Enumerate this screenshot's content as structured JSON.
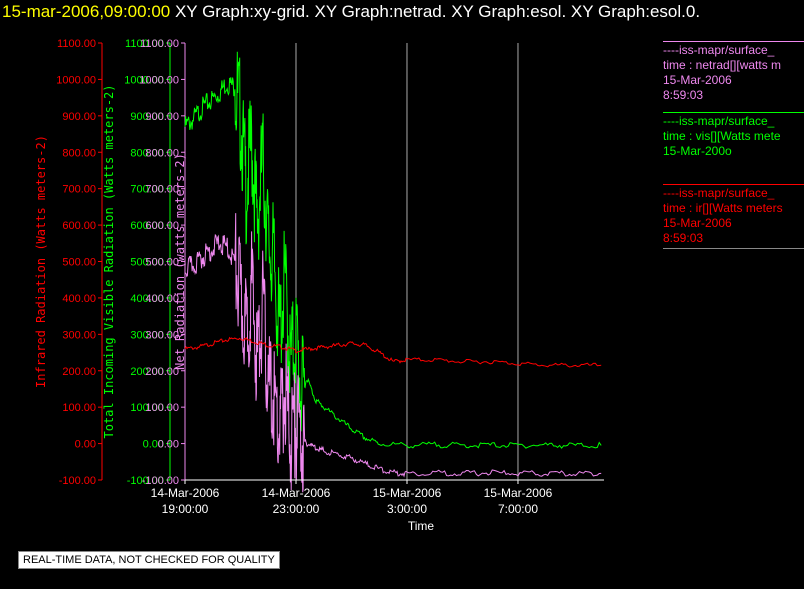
{
  "header": {
    "timestamp": "15-mar-2006,09:00:00",
    "graphs": "XY Graph:xy-grid.  XY Graph:netrad.  XY Graph:esol.  XY Graph:esol.0."
  },
  "colors": {
    "ir": "#ff0000",
    "vis": "#00ff00",
    "net": "#ee88ee",
    "axis_white": "#ffffff"
  },
  "chart_data": {
    "type": "line",
    "xlabel": "Time",
    "x_ticks": [
      {
        "date": "14-Mar-2006",
        "time": "19:00:00",
        "hour": 19
      },
      {
        "date": "14-Mar-2006",
        "time": "23:00:00",
        "hour": 23
      },
      {
        "date": "15-Mar-2006",
        "time": "3:00:00",
        "hour": 27
      },
      {
        "date": "15-Mar-2006",
        "time": "7:00:00",
        "hour": 31
      }
    ],
    "xlim_hours_since_14mar_00": [
      19,
      34.1
    ],
    "grid": "vertical",
    "y_axes": [
      {
        "label": "Infrared Radiation (Watts meters-2)",
        "color": "#ff0000",
        "range": [
          -100,
          1100
        ],
        "ticks": [
          "1100.00",
          "1000.00",
          "900.00",
          "800.00",
          "700.00",
          "600.00",
          "500.00",
          "400.00",
          "300.00",
          "200.00",
          "100.00",
          "0.00",
          "-100.00"
        ]
      },
      {
        "label": "Total Incoming Visible Radiation (Watts meters-2)",
        "color": "#00ff00",
        "range": [
          -100,
          1100
        ],
        "ticks": [
          "1100.00",
          "1000.00",
          "900.00",
          "800.00",
          "700.00",
          "600.00",
          "500.00",
          "400.00",
          "300.00",
          "200.00",
          "100.00",
          "0.00",
          "-100.00"
        ]
      },
      {
        "label": "Net Radiation (watts meters-2)",
        "color": "#ee88ee",
        "range": [
          -100,
          1100
        ],
        "ticks": [
          "1100.00",
          "1000.00",
          "900.00",
          "800.00",
          "700.00",
          "600.00",
          "500.00",
          "400.00",
          "300.00",
          "200.00",
          "100.00",
          "0.00",
          "-100.00"
        ]
      }
    ],
    "series": [
      {
        "key": "vis",
        "color": "#00ff00",
        "x": [
          19.0,
          19.3,
          19.6,
          19.9,
          20.2,
          20.5,
          20.8,
          21.0,
          21.2,
          21.4,
          21.6,
          21.8,
          22.0,
          22.2,
          22.4,
          22.6,
          22.8,
          23.0,
          23.2,
          23.4,
          23.7,
          24.0,
          24.5,
          25.0,
          25.5,
          26.0,
          27.0,
          28.0,
          29.0,
          30.0,
          31.0,
          32.0,
          33.0,
          34.0
        ],
        "y": [
          870,
          890,
          920,
          940,
          960,
          990,
          980,
          900,
          700,
          820,
          600,
          780,
          550,
          500,
          300,
          450,
          220,
          300,
          130,
          180,
          120,
          100,
          70,
          40,
          15,
          0,
          -5,
          -3,
          -5,
          -4,
          -5,
          -4,
          -5,
          -5
        ]
      },
      {
        "key": "net",
        "color": "#ee88ee",
        "x": [
          19.0,
          19.3,
          19.6,
          19.9,
          20.2,
          20.5,
          20.8,
          21.0,
          21.2,
          21.4,
          21.6,
          21.8,
          22.0,
          22.2,
          22.4,
          22.6,
          22.8,
          23.0,
          23.2,
          23.4,
          23.7,
          24.0,
          24.5,
          25.0,
          25.5,
          26.0,
          26.5,
          27.0,
          28.0,
          29.0,
          30.0,
          31.0,
          32.0,
          33.0,
          34.0
        ],
        "y": [
          480,
          490,
          510,
          530,
          550,
          540,
          500,
          400,
          300,
          430,
          220,
          380,
          150,
          120,
          30,
          150,
          20,
          60,
          10,
          0,
          -10,
          -20,
          -30,
          -40,
          -55,
          -70,
          -80,
          -82,
          -80,
          -82,
          -80,
          -82,
          -83,
          -82,
          -82
        ]
      },
      {
        "key": "ir",
        "color": "#ff0000",
        "x": [
          19.0,
          19.5,
          20.0,
          20.5,
          21.0,
          21.5,
          22.0,
          22.5,
          23.0,
          23.5,
          24.0,
          24.5,
          25.0,
          25.5,
          26.0,
          26.5,
          27.0,
          28.0,
          29.0,
          30.0,
          31.0,
          32.0,
          33.0,
          34.0
        ],
        "y": [
          260,
          265,
          275,
          285,
          290,
          280,
          270,
          265,
          255,
          260,
          265,
          270,
          275,
          270,
          250,
          225,
          230,
          230,
          225,
          225,
          220,
          215,
          215,
          215
        ]
      }
    ]
  },
  "legend": [
    {
      "key": "net",
      "lines": [
        "----iss-mapr/surface_",
        "time : netrad[][watts m",
        "15-Mar-2006",
        "8:59:03"
      ]
    },
    {
      "key": "vis",
      "lines": [
        "----iss-mapr/surface_",
        "time : vis[][Watts mete",
        "15-Mar-200o"
      ]
    },
    {
      "key": "ir",
      "lines": [
        "----iss-mapr/surface_",
        "time : ir[][Watts meters",
        "15-Mar-2006",
        "8:59:03"
      ]
    }
  ],
  "footer": {
    "quality_note": "REAL-TIME DATA, NOT CHECKED FOR QUALITY"
  }
}
